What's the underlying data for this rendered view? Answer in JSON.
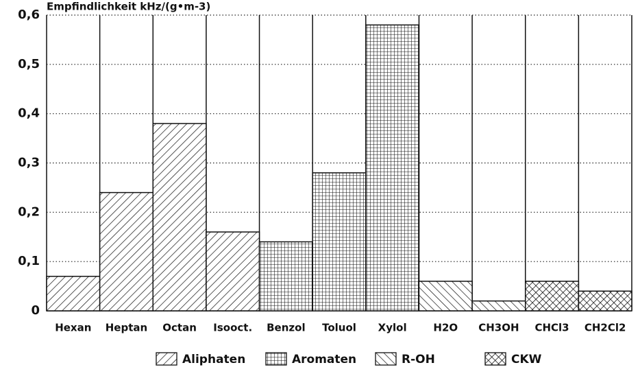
{
  "chart_data": {
    "type": "bar",
    "title": "Empfindlichkeit kHz/(g•m-3)",
    "categories": [
      "Hexan",
      "Heptan",
      "Octan",
      "Isooct.",
      "Benzol",
      "Toluol",
      "Xylol",
      "H2O",
      "CH3OH",
      "CHCl3",
      "CH2Cl2"
    ],
    "series": [
      {
        "name": "Aliphaten",
        "color": "#111111",
        "hatch": "forward",
        "values": [
          0.07,
          0.24,
          0.38,
          0.16,
          null,
          null,
          null,
          null,
          null,
          null,
          null
        ]
      },
      {
        "name": "Aromaten",
        "color": "#111111",
        "hatch": "grid",
        "values": [
          null,
          null,
          null,
          null,
          0.14,
          0.28,
          0.58,
          null,
          null,
          null,
          null
        ]
      },
      {
        "name": "R-OH",
        "color": "#111111",
        "hatch": "back",
        "values": [
          null,
          null,
          null,
          null,
          null,
          null,
          null,
          0.06,
          0.02,
          null,
          null
        ]
      },
      {
        "name": "CKW",
        "color": "#111111",
        "hatch": "cross",
        "values": [
          null,
          null,
          null,
          null,
          null,
          null,
          null,
          null,
          null,
          0.06,
          0.04
        ]
      }
    ],
    "ylim": [
      0,
      0.6
    ],
    "yticks": [
      0,
      {
        "value": 0.1,
        "label": "0,1"
      },
      {
        "value": 0.2,
        "label": "0,2"
      },
      {
        "value": 0.3,
        "label": "0,3"
      },
      {
        "value": 0.4,
        "label": "0,4"
      },
      {
        "value": 0.5,
        "label": "0,5"
      },
      {
        "value": 0.6,
        "label": "0,6"
      }
    ],
    "grid": true,
    "legend": "bottom"
  }
}
